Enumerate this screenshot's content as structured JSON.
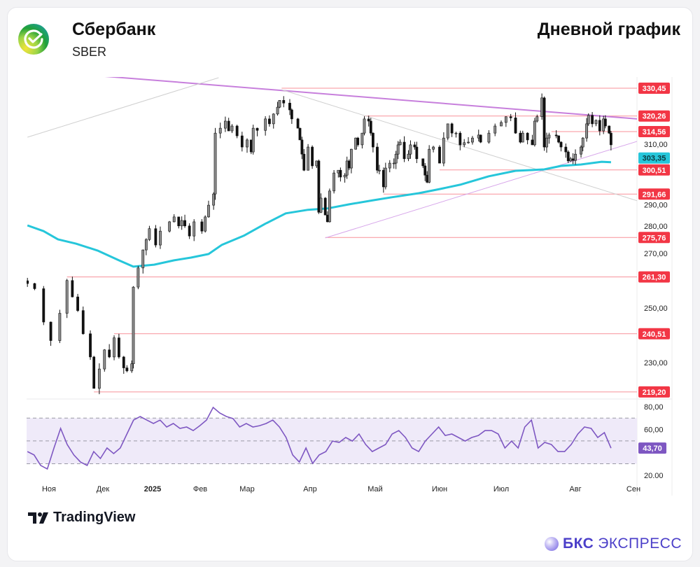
{
  "header": {
    "company": "Сбербанк",
    "ticker": "SBER",
    "chart_kind": "Дневной график"
  },
  "footer": {
    "tradingview": "TradingView",
    "broker_bold": "БКС",
    "broker_rest": "ЭКСПРЕСС"
  },
  "colors": {
    "level": "#f23645",
    "ma": "#26c6da",
    "trend_main": "#c77fdc",
    "trend_thin": "#d7a6ea",
    "trend_gray": "#cfcfcf",
    "rsi": "#7e57c2",
    "rsi_band": "#efeaf9",
    "candle_up": "#8c8c8c",
    "candle_down": "#111111"
  },
  "chart_data": {
    "type": "candlestick",
    "xaxis": {
      "ticks": [
        "Ноя",
        "Дек",
        "2025",
        "Фев",
        "Мар",
        "Апр",
        "Май",
        "Июн",
        "Июл",
        "Авг",
        "Сен"
      ]
    },
    "yaxis": {
      "ticks": [
        "310,00",
        "290,00",
        "280,00",
        "270,00",
        "250,00",
        "230,00"
      ],
      "range": [
        219.2,
        334
      ]
    },
    "closes": [
      [
        "2024-10-20",
        258.9
      ],
      [
        "2024-10-24",
        257.0
      ],
      [
        "2024-10-29",
        244.8
      ],
      [
        "2024-11-02",
        238.0
      ],
      [
        "2024-11-07",
        248.0
      ],
      [
        "2024-11-11",
        260.0
      ],
      [
        "2024-11-14",
        254.0
      ],
      [
        "2024-11-17",
        249.0
      ],
      [
        "2024-11-20",
        240.5
      ],
      [
        "2024-11-24",
        232.0
      ],
      [
        "2024-11-26",
        220.5
      ],
      [
        "2024-11-29",
        227.6
      ],
      [
        "2024-12-02",
        234.6
      ],
      [
        "2024-12-05",
        232.0
      ],
      [
        "2024-12-08",
        239.0
      ],
      [
        "2024-12-11",
        232.0
      ],
      [
        "2024-12-14",
        228.0
      ],
      [
        "2024-12-16",
        226.9
      ],
      [
        "2024-12-19",
        229.5
      ],
      [
        "2024-12-20",
        257.6
      ],
      [
        "2024-12-23",
        264.6
      ],
      [
        "2024-12-26",
        271.2
      ],
      [
        "2024-12-28",
        275.0
      ],
      [
        "2024-12-30",
        279.0
      ],
      [
        "2025-01-03",
        273.0
      ],
      [
        "2025-01-06",
        278.1
      ],
      [
        "2025-01-12",
        281.5
      ],
      [
        "2025-01-15",
        283.3
      ],
      [
        "2025-01-18",
        280.0
      ],
      [
        "2025-01-20",
        282.0
      ],
      [
        "2025-01-22",
        280.0
      ],
      [
        "2025-01-25",
        276.3
      ],
      [
        "2025-01-28",
        281.5
      ],
      [
        "2025-02-02",
        278.1
      ],
      [
        "2025-02-04",
        283.3
      ],
      [
        "2025-02-06",
        287.6
      ],
      [
        "2025-02-09",
        291.7
      ],
      [
        "2025-02-10",
        314.0
      ],
      [
        "2025-02-13",
        315.8
      ],
      [
        "2025-02-16",
        318.4
      ],
      [
        "2025-02-18",
        314.8
      ],
      [
        "2025-02-20",
        316.6
      ],
      [
        "2025-02-23",
        313.0
      ],
      [
        "2025-02-26",
        308.9
      ],
      [
        "2025-03-01",
        311.5
      ],
      [
        "2025-03-03",
        307.1
      ],
      [
        "2025-03-04",
        315.8
      ],
      [
        "2025-03-06",
        315.0
      ],
      [
        "2025-03-10",
        319.2
      ],
      [
        "2025-03-12",
        317.4
      ],
      [
        "2025-03-14",
        321.0
      ],
      [
        "2025-03-16",
        323.5
      ],
      [
        "2025-03-17",
        326.0
      ],
      [
        "2025-03-19",
        325.0
      ],
      [
        "2025-03-22",
        322.5
      ],
      [
        "2025-03-23",
        319.2
      ],
      [
        "2025-03-26",
        315.8
      ],
      [
        "2025-03-27",
        311.5
      ],
      [
        "2025-03-28",
        306.3
      ],
      [
        "2025-03-29",
        300.4
      ],
      [
        "2025-03-31",
        308.9
      ],
      [
        "2025-04-02",
        302.0
      ],
      [
        "2025-04-04",
        303.8
      ],
      [
        "2025-04-05",
        285.0
      ],
      [
        "2025-04-06",
        290.2
      ],
      [
        "2025-04-08",
        284.0
      ],
      [
        "2025-04-09",
        281.5
      ],
      [
        "2025-04-10",
        292.8
      ],
      [
        "2025-04-12",
        299.4
      ],
      [
        "2025-04-14",
        300.4
      ],
      [
        "2025-04-15",
        297.9
      ],
      [
        "2025-04-17",
        298.6
      ],
      [
        "2025-04-18",
        303.8
      ],
      [
        "2025-04-19",
        301.2
      ],
      [
        "2025-04-20",
        308.1
      ],
      [
        "2025-04-22",
        312.2
      ],
      [
        "2025-04-23",
        309.7
      ],
      [
        "2025-04-25",
        314.0
      ],
      [
        "2025-04-26",
        319.2
      ],
      [
        "2025-04-28",
        318.4
      ],
      [
        "2025-04-29",
        314.0
      ],
      [
        "2025-04-30",
        308.9
      ],
      [
        "2025-05-02",
        300.4
      ],
      [
        "2025-05-03",
        300.4
      ],
      [
        "2025-05-05",
        294.3
      ],
      [
        "2025-05-06",
        301.2
      ],
      [
        "2025-05-08",
        303.0
      ],
      [
        "2025-05-10",
        303.0
      ],
      [
        "2025-05-11",
        306.3
      ],
      [
        "2025-05-12",
        309.7
      ],
      [
        "2025-05-13",
        310.7
      ],
      [
        "2025-05-15",
        304.6
      ],
      [
        "2025-05-17",
        306.3
      ],
      [
        "2025-05-18",
        309.7
      ],
      [
        "2025-05-20",
        308.9
      ],
      [
        "2025-05-21",
        304.6
      ],
      [
        "2025-05-24",
        302.0
      ],
      [
        "2025-05-25",
        298.6
      ],
      [
        "2025-05-26",
        296.0
      ],
      [
        "2025-05-27",
        308.1
      ],
      [
        "2025-05-29",
        308.9
      ],
      [
        "2025-06-01",
        303.0
      ],
      [
        "2025-06-03",
        312.2
      ],
      [
        "2025-06-05",
        317.4
      ],
      [
        "2025-06-07",
        314.0
      ],
      [
        "2025-06-09",
        314.0
      ],
      [
        "2025-06-11",
        309.7
      ],
      [
        "2025-06-13",
        310.5
      ],
      [
        "2025-06-15",
        310.7
      ],
      [
        "2025-06-17",
        312.2
      ],
      [
        "2025-06-20",
        313.3
      ],
      [
        "2025-06-21",
        310.7
      ],
      [
        "2025-06-25",
        314.0
      ],
      [
        "2025-06-28",
        316.6
      ],
      [
        "2025-07-01",
        317.9
      ],
      [
        "2025-07-03",
        320.0
      ],
      [
        "2025-07-05",
        319.6
      ],
      [
        "2025-07-07",
        314.0
      ],
      [
        "2025-07-09",
        310.7
      ],
      [
        "2025-07-10",
        314.0
      ],
      [
        "2025-07-12",
        311.5
      ],
      [
        "2025-07-14",
        309.7
      ],
      [
        "2025-07-15",
        318.4
      ],
      [
        "2025-07-16",
        320.0
      ],
      [
        "2025-07-18",
        326.9
      ],
      [
        "2025-07-19",
        308.9
      ],
      [
        "2025-07-20",
        312.2
      ],
      [
        "2025-07-21",
        313.3
      ],
      [
        "2025-07-24",
        313.0
      ],
      [
        "2025-07-25",
        310.7
      ],
      [
        "2025-07-26",
        308.9
      ],
      [
        "2025-07-28",
        307.1
      ],
      [
        "2025-07-29",
        303.8
      ],
      [
        "2025-07-30",
        304.6
      ],
      [
        "2025-07-31",
        304.0
      ],
      [
        "2025-08-01",
        306.3
      ],
      [
        "2025-08-04",
        308.9
      ],
      [
        "2025-08-05",
        312.2
      ],
      [
        "2025-08-07",
        317.4
      ],
      [
        "2025-08-08",
        320.5
      ],
      [
        "2025-08-10",
        317.4
      ],
      [
        "2025-08-12",
        318.7
      ],
      [
        "2025-08-14",
        314.8
      ],
      [
        "2025-08-16",
        319.2
      ],
      [
        "2025-08-17",
        316.6
      ],
      [
        "2025-08-19",
        314.0
      ],
      [
        "2025-08-20",
        309.7
      ]
    ],
    "moving_average": {
      "last_label": "303,35",
      "points": [
        [
          "2024-10-20",
          280.2
        ],
        [
          "2024-10-29",
          278.1
        ],
        [
          "2024-11-06",
          275.1
        ],
        [
          "2024-11-16",
          273.5
        ],
        [
          "2024-11-28",
          271.0
        ],
        [
          "2024-12-11",
          267.4
        ],
        [
          "2024-12-20",
          265.1
        ],
        [
          "2025-01-02",
          265.8
        ],
        [
          "2025-01-15",
          267.4
        ],
        [
          "2025-01-26",
          268.4
        ],
        [
          "2025-02-06",
          269.7
        ],
        [
          "2025-02-14",
          273.1
        ],
        [
          "2025-02-27",
          276.4
        ],
        [
          "2025-03-10",
          280.8
        ],
        [
          "2025-03-20",
          284.6
        ],
        [
          "2025-03-31",
          285.9
        ],
        [
          "2025-04-09",
          286.4
        ],
        [
          "2025-04-19",
          287.9
        ],
        [
          "2025-04-30",
          289.4
        ],
        [
          "2025-05-09",
          290.5
        ],
        [
          "2025-05-22",
          292.0
        ],
        [
          "2025-06-01",
          293.5
        ],
        [
          "2025-06-11",
          295.1
        ],
        [
          "2025-06-25",
          298.2
        ],
        [
          "2025-07-07",
          300.2
        ],
        [
          "2025-07-19",
          300.7
        ],
        [
          "2025-07-26",
          302.0
        ],
        [
          "2025-08-04",
          302.5
        ],
        [
          "2025-08-15",
          303.5
        ],
        [
          "2025-08-20",
          303.35
        ]
      ]
    },
    "levels": [
      {
        "value": 330.45,
        "label": "330,45",
        "from": "2025-03-18"
      },
      {
        "value": 320.26,
        "label": "320,26",
        "from": "2025-04-26"
      },
      {
        "value": 314.56,
        "label": "314,56",
        "from": "2025-07-22"
      },
      {
        "value": 300.51,
        "label": "300,51",
        "from": "2025-06-01"
      },
      {
        "value": 291.66,
        "label": "291,66",
        "from": "2025-05-05"
      },
      {
        "value": 275.76,
        "label": "275,76",
        "from": "2025-04-08"
      },
      {
        "value": 261.3,
        "label": "261,30",
        "from": "2024-11-11"
      },
      {
        "value": 240.51,
        "label": "240,51",
        "from": "2024-12-08"
      },
      {
        "value": 219.2,
        "label": "219,20",
        "from": "2024-11-26"
      }
    ],
    "trendlines": [
      {
        "kind": "main",
        "from": [
          "2024-12-13",
          334.3
        ],
        "to": [
          "2025-09-03",
          319.2
        ]
      },
      {
        "kind": "thin",
        "from": [
          "2025-04-08",
          275.6
        ],
        "to": [
          "2025-09-03",
          311.0
        ]
      },
      {
        "kind": "gray",
        "from": [
          "2024-10-20",
          312.5
        ],
        "to": [
          "2025-02-12",
          334.3
        ]
      },
      {
        "kind": "gray",
        "from": [
          "2025-03-18",
          329.9
        ],
        "to": [
          "2025-09-03",
          289.2
        ]
      }
    ],
    "rsi": {
      "ticks": [
        "80,00",
        "60,00",
        "20.00"
      ],
      "band": [
        30,
        70
      ],
      "last_label": "43,70",
      "values": [
        40.7,
        37.7,
        28.5,
        25.4,
        43.8,
        61.0,
        46.9,
        37.7,
        31.5,
        28.5,
        40.7,
        34.6,
        43.8,
        38.9,
        43.8,
        56.1,
        68.3,
        71.4,
        68.3,
        65.3,
        68.3,
        62.2,
        65.3,
        61.0,
        62.2,
        59.1,
        63.4,
        68.3,
        79.4,
        74.5,
        71.4,
        69.6,
        62.2,
        65.3,
        62.2,
        63.4,
        65.3,
        68.3,
        62.2,
        53.0,
        37.7,
        31.5,
        43.8,
        30.3,
        37.7,
        40.7,
        49.9,
        48.7,
        53.0,
        49.9,
        56.1,
        46.9,
        40.7,
        43.8,
        46.9,
        56.1,
        59.1,
        53.0,
        43.8,
        40.7,
        49.9,
        56.1,
        62.2,
        54.8,
        56.1,
        53.0,
        49.9,
        53.0,
        54.8,
        59.1,
        59.1,
        56.1,
        43.8,
        49.9,
        43.8,
        62.2,
        68.3,
        43.8,
        48.7,
        46.9,
        40.7,
        40.7,
        46.9,
        56.1,
        62.2,
        61.0,
        53.0,
        57.3,
        43.7
      ]
    }
  }
}
